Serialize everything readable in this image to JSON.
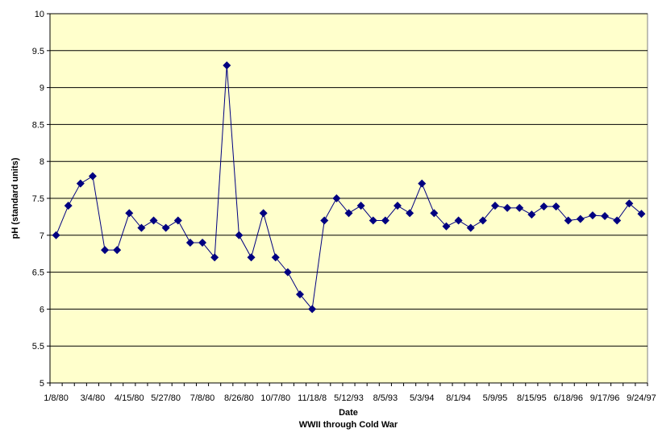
{
  "chart_data": {
    "type": "line",
    "xlabel": "Date",
    "xlabel2": "WWII through Cold War",
    "ylabel": "pH  (standard units)",
    "ylim": [
      5,
      10
    ],
    "y_ticks": [
      "5",
      "5.5",
      "6",
      "6.5",
      "7",
      "7.5",
      "8",
      "8.5",
      "9",
      "9.5",
      "10"
    ],
    "x_tick_labels": [
      "1/8/80",
      "3/4/80",
      "4/15/80",
      "5/27/80",
      "7/8/80",
      "8/26/80",
      "10/7/80",
      "11/18/8",
      "5/12/93",
      "8/5/93",
      "5/3/94",
      "8/1/94",
      "5/9/95",
      "8/15/95",
      "6/18/96",
      "9/17/96",
      "9/24/97"
    ],
    "grid": true,
    "legend": "none",
    "plot_bg": "#FFFFCC",
    "series_color": "#000080",
    "series": [
      {
        "values": [
          7.0,
          7.4,
          7.7,
          7.8,
          6.8,
          6.8,
          7.3,
          7.1,
          7.2,
          7.1,
          7.2,
          6.9,
          6.9,
          6.7,
          9.3,
          7.0,
          6.7,
          7.3,
          6.7,
          6.5,
          6.2,
          6.0,
          7.2,
          7.5,
          7.3,
          7.4,
          7.2,
          7.2,
          7.4,
          7.3,
          7.7,
          7.3,
          7.12,
          7.2,
          7.1,
          7.2,
          7.4,
          7.37,
          7.37,
          7.28,
          7.39,
          7.39,
          7.2,
          7.22,
          7.27,
          7.26,
          7.2,
          7.43,
          7.29
        ]
      }
    ]
  }
}
